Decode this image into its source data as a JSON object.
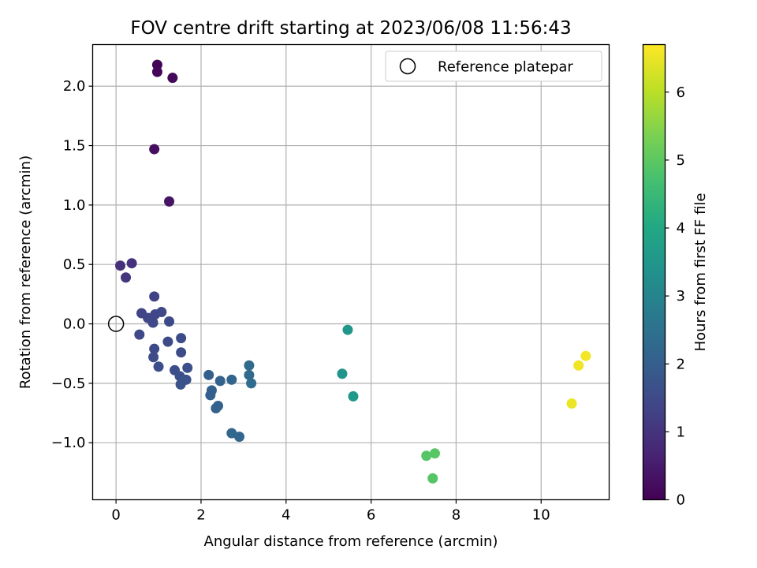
{
  "chart_data": {
    "type": "scatter",
    "title": "FOV centre drift starting at 2023/06/08 11:56:43",
    "xlabel": "Angular distance from reference (arcmin)",
    "ylabel": "Rotation from reference (arcmin)",
    "xlim": [
      -0.55,
      11.6
    ],
    "ylim": [
      -1.48,
      2.35
    ],
    "xticks": [
      0,
      2,
      4,
      6,
      8,
      10
    ],
    "yticks": [
      -1.0,
      -0.5,
      0.0,
      0.5,
      1.0,
      1.5,
      2.0
    ],
    "xtick_labels": [
      "0",
      "2",
      "4",
      "6",
      "8",
      "10"
    ],
    "ytick_labels": [
      "−1.0",
      "−0.5",
      "0.0",
      "0.5",
      "1.0",
      "1.5",
      "2.0"
    ],
    "grid": true,
    "legend": {
      "placement": "top-right",
      "entries": [
        "Reference platepar"
      ]
    },
    "reference_point": {
      "x": 0,
      "y": 0
    },
    "colorbar": {
      "label": "Hours from first FF file",
      "min": 0,
      "max": 6.7,
      "ticks": [
        0,
        1,
        2,
        3,
        4,
        5,
        6
      ],
      "tick_labels": [
        "0",
        "1",
        "2",
        "3",
        "4",
        "5",
        "6"
      ],
      "colormap": "viridis"
    },
    "points": [
      {
        "x": 0.97,
        "y": 2.18,
        "h": 0.05
      },
      {
        "x": 0.97,
        "y": 2.12,
        "h": 0.1
      },
      {
        "x": 1.33,
        "y": 2.07,
        "h": 0.15
      },
      {
        "x": 0.9,
        "y": 1.47,
        "h": 0.25
      },
      {
        "x": 1.25,
        "y": 1.03,
        "h": 0.35
      },
      {
        "x": 0.1,
        "y": 0.49,
        "h": 0.9
      },
      {
        "x": 0.37,
        "y": 0.51,
        "h": 0.95
      },
      {
        "x": 0.23,
        "y": 0.39,
        "h": 1.0
      },
      {
        "x": 0.9,
        "y": 0.23,
        "h": 1.3
      },
      {
        "x": 0.6,
        "y": 0.09,
        "h": 1.35
      },
      {
        "x": 0.75,
        "y": 0.05,
        "h": 1.4
      },
      {
        "x": 0.92,
        "y": 0.08,
        "h": 1.4
      },
      {
        "x": 1.07,
        "y": 0.1,
        "h": 1.45
      },
      {
        "x": 0.87,
        "y": 0.01,
        "h": 1.45
      },
      {
        "x": 1.25,
        "y": 0.02,
        "h": 1.5
      },
      {
        "x": 0.55,
        "y": -0.09,
        "h": 1.45
      },
      {
        "x": 0.9,
        "y": -0.21,
        "h": 1.5
      },
      {
        "x": 1.53,
        "y": -0.12,
        "h": 1.55
      },
      {
        "x": 1.22,
        "y": -0.15,
        "h": 1.55
      },
      {
        "x": 1.53,
        "y": -0.24,
        "h": 1.55
      },
      {
        "x": 0.88,
        "y": -0.28,
        "h": 1.55
      },
      {
        "x": 1.0,
        "y": -0.36,
        "h": 1.6
      },
      {
        "x": 1.38,
        "y": -0.39,
        "h": 1.6
      },
      {
        "x": 1.68,
        "y": -0.37,
        "h": 1.65
      },
      {
        "x": 1.5,
        "y": -0.44,
        "h": 1.65
      },
      {
        "x": 1.65,
        "y": -0.47,
        "h": 1.7
      },
      {
        "x": 1.52,
        "y": -0.51,
        "h": 1.7
      },
      {
        "x": 2.18,
        "y": -0.43,
        "h": 2.0
      },
      {
        "x": 2.45,
        "y": -0.48,
        "h": 2.1
      },
      {
        "x": 2.72,
        "y": -0.47,
        "h": 2.15
      },
      {
        "x": 2.25,
        "y": -0.56,
        "h": 2.05
      },
      {
        "x": 2.22,
        "y": -0.6,
        "h": 2.05
      },
      {
        "x": 2.4,
        "y": -0.69,
        "h": 2.1
      },
      {
        "x": 2.35,
        "y": -0.71,
        "h": 2.1
      },
      {
        "x": 3.13,
        "y": -0.35,
        "h": 2.3
      },
      {
        "x": 3.13,
        "y": -0.43,
        "h": 2.3
      },
      {
        "x": 3.18,
        "y": -0.5,
        "h": 2.35
      },
      {
        "x": 2.72,
        "y": -0.92,
        "h": 2.2
      },
      {
        "x": 2.9,
        "y": -0.95,
        "h": 2.2
      },
      {
        "x": 5.45,
        "y": -0.05,
        "h": 3.5
      },
      {
        "x": 5.32,
        "y": -0.42,
        "h": 3.45
      },
      {
        "x": 5.58,
        "y": -0.61,
        "h": 3.55
      },
      {
        "x": 7.3,
        "y": -1.11,
        "h": 4.9
      },
      {
        "x": 7.5,
        "y": -1.09,
        "h": 4.95
      },
      {
        "x": 7.45,
        "y": -1.3,
        "h": 4.9
      },
      {
        "x": 10.72,
        "y": -0.67,
        "h": 6.5
      },
      {
        "x": 10.88,
        "y": -0.35,
        "h": 6.55
      },
      {
        "x": 11.05,
        "y": -0.27,
        "h": 6.6
      }
    ]
  }
}
